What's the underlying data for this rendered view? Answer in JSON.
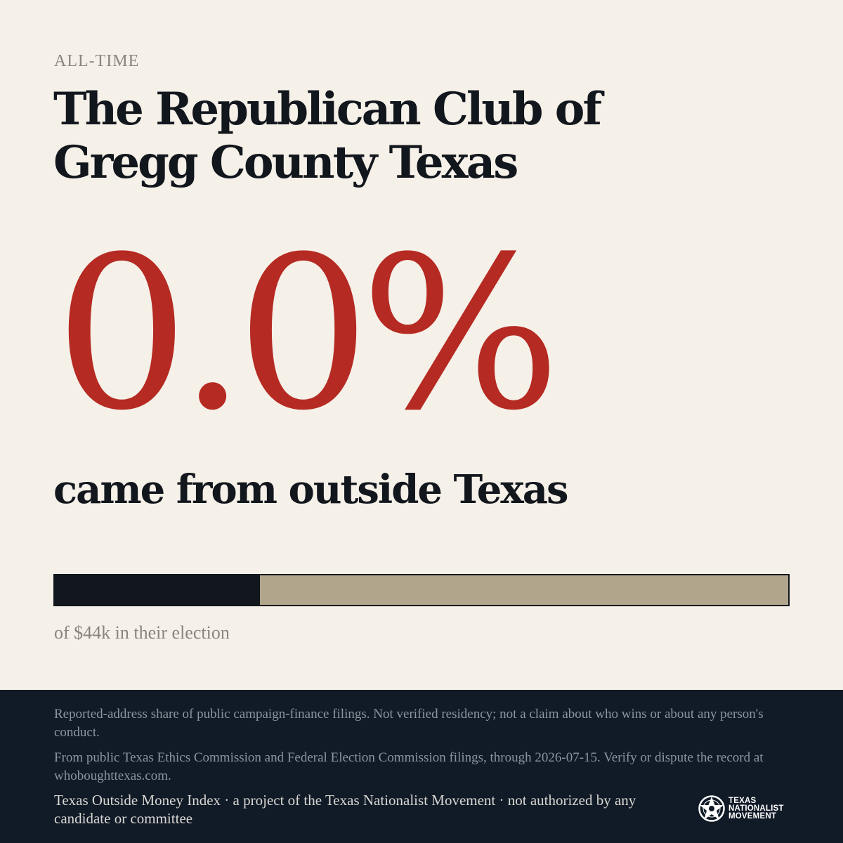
{
  "kicker": "ALL-TIME",
  "title": "The Republican Club of Gregg County Texas",
  "stat": {
    "value": "0.0%",
    "caption": "came from outside Texas"
  },
  "bar": {
    "fill_fraction": 0.28,
    "caption": "of $44k in their election",
    "colors": {
      "fill": "#12161d",
      "track": "#b1a68c"
    }
  },
  "footer": {
    "note1": "Reported-address share of public campaign-finance filings. Not verified residency; not a claim about who wins or about any person's conduct.",
    "note2": "From public Texas Ethics Commission and Federal Election Commission filings, through 2026-07-15. Verify or dispute the record at whoboughttexas.com.",
    "credit": "Texas Outside Money Index · a project of the Texas Nationalist Movement · not authorized by any candidate or committee"
  },
  "logo": {
    "icon": "star-seal-icon",
    "line1": "TEXAS",
    "line2": "NATIONALIST",
    "line3": "MOVEMENT"
  },
  "colors": {
    "background": "#f5f0e8",
    "accent": "#b52a22",
    "ink": "#12161d",
    "footer_bg": "#111b27"
  }
}
